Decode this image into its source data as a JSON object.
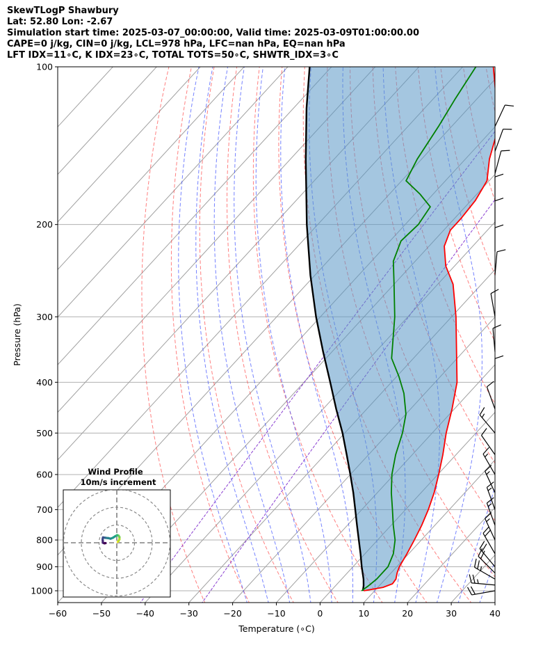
{
  "header": {
    "line1": "SkewTLogP Shawbury",
    "line2": "Lat: 52.80   Lon: -2.67",
    "line3": "Simulation start time: 2025-03-07_00:00:00, Valid time: 2025-03-09T01:00:00.00",
    "line4": "CAPE=0 j/kg, CIN=0 j/kg, LCL=978 hPa, LFC=nan hPa, EQ=nan hPa",
    "line5": "LFT IDX=11∘C, K IDX=23∘C, TOTAL TOTS=50∘C, SHWTR_IDX=3∘C"
  },
  "chart_data": {
    "type": "line",
    "chart_kind": "Skew-T log-P diagram",
    "xlabel": "Temperature (∘C)",
    "ylabel": "Pressure (hPa)",
    "xlim": [
      -60,
      40
    ],
    "ylim": [
      1050,
      100
    ],
    "y_scale": "log",
    "x_ticks": [
      "−60",
      "−50",
      "−40",
      "−30",
      "−20",
      "−10",
      "0",
      "10",
      "20",
      "30",
      "40"
    ],
    "x_tick_values": [
      -60,
      -50,
      -40,
      -30,
      -20,
      -10,
      0,
      10,
      20,
      30,
      40
    ],
    "y_ticks": [
      "100",
      "200",
      "300",
      "400",
      "500",
      "600",
      "700",
      "800",
      "900",
      "1000"
    ],
    "y_tick_values": [
      100,
      200,
      300,
      400,
      500,
      600,
      700,
      800,
      900,
      1000
    ],
    "grid": true,
    "colors": {
      "temperature": "#ff0000",
      "dewpoint": "#008000",
      "parcel": "#000000",
      "cin_cape_fill": "#5a98c6",
      "dry_adiabat": "#ff3b3b",
      "moist_adiabat": "#3a4dff",
      "mixing_ratio": "#8a3fd1",
      "isotherm": "#a0a0a0"
    },
    "series": [
      {
        "name": "",
        "role": "temperature",
        "points": [
          {
            "p": 1000,
            "t": 7.5
          },
          {
            "p": 985,
            "t": 11.2
          },
          {
            "p": 970,
            "t": 12.6
          },
          {
            "p": 950,
            "t": 12.4
          },
          {
            "p": 925,
            "t": 11.4
          },
          {
            "p": 900,
            "t": 10.6
          },
          {
            "p": 850,
            "t": 9.6
          },
          {
            "p": 800,
            "t": 8.4
          },
          {
            "p": 750,
            "t": 7.0
          },
          {
            "p": 700,
            "t": 5.2
          },
          {
            "p": 650,
            "t": 3.0
          },
          {
            "p": 600,
            "t": 0.2
          },
          {
            "p": 550,
            "t": -3.0
          },
          {
            "p": 500,
            "t": -6.8
          },
          {
            "p": 450,
            "t": -10.5
          },
          {
            "p": 400,
            "t": -15.0
          },
          {
            "p": 350,
            "t": -21.5
          },
          {
            "p": 300,
            "t": -29.0
          },
          {
            "p": 260,
            "t": -36.5
          },
          {
            "p": 240,
            "t": -42.0
          },
          {
            "p": 220,
            "t": -46.5
          },
          {
            "p": 205,
            "t": -48.5
          },
          {
            "p": 195,
            "t": -48.5
          },
          {
            "p": 180,
            "t": -49.0
          },
          {
            "p": 165,
            "t": -50.5
          },
          {
            "p": 150,
            "t": -54.5
          },
          {
            "p": 135,
            "t": -58.0
          },
          {
            "p": 120,
            "t": -63.0
          },
          {
            "p": 110,
            "t": -68.0
          },
          {
            "p": 100,
            "t": -73.0
          }
        ]
      },
      {
        "name": "",
        "role": "dewpoint",
        "points": [
          {
            "p": 1000,
            "t": 7.0
          },
          {
            "p": 980,
            "t": 7.5
          },
          {
            "p": 950,
            "t": 8.0
          },
          {
            "p": 900,
            "t": 8.0
          },
          {
            "p": 850,
            "t": 6.5
          },
          {
            "p": 800,
            "t": 4.0
          },
          {
            "p": 750,
            "t": 0.5
          },
          {
            "p": 700,
            "t": -3.0
          },
          {
            "p": 650,
            "t": -6.8
          },
          {
            "p": 600,
            "t": -10.5
          },
          {
            "p": 550,
            "t": -13.8
          },
          {
            "p": 500,
            "t": -16.8
          },
          {
            "p": 460,
            "t": -20.0
          },
          {
            "p": 420,
            "t": -24.8
          },
          {
            "p": 390,
            "t": -29.5
          },
          {
            "p": 360,
            "t": -35.0
          },
          {
            "p": 340,
            "t": -37.5
          },
          {
            "p": 300,
            "t": -43.0
          },
          {
            "p": 260,
            "t": -50.0
          },
          {
            "p": 235,
            "t": -55.0
          },
          {
            "p": 215,
            "t": -57.5
          },
          {
            "p": 200,
            "t": -57.0
          },
          {
            "p": 185,
            "t": -58.0
          },
          {
            "p": 175,
            "t": -63.0
          },
          {
            "p": 165,
            "t": -69.0
          },
          {
            "p": 150,
            "t": -71.0
          },
          {
            "p": 130,
            "t": -73.0
          },
          {
            "p": 115,
            "t": -75.0
          },
          {
            "p": 100,
            "t": -77.0
          }
        ]
      },
      {
        "name": "",
        "role": "parcel",
        "points": [
          {
            "p": 1000,
            "t": 7.3
          },
          {
            "p": 978,
            "t": 6.4
          },
          {
            "p": 950,
            "t": 5.0
          },
          {
            "p": 900,
            "t": 2.0
          },
          {
            "p": 850,
            "t": -1.0
          },
          {
            "p": 800,
            "t": -4.3
          },
          {
            "p": 750,
            "t": -7.8
          },
          {
            "p": 700,
            "t": -11.5
          },
          {
            "p": 650,
            "t": -15.5
          },
          {
            "p": 600,
            "t": -20.0
          },
          {
            "p": 550,
            "t": -25.0
          },
          {
            "p": 500,
            "t": -30.5
          },
          {
            "p": 450,
            "t": -37.0
          },
          {
            "p": 400,
            "t": -44.0
          },
          {
            "p": 350,
            "t": -52.0
          },
          {
            "p": 300,
            "t": -61.0
          },
          {
            "p": 250,
            "t": -71.0
          },
          {
            "p": 200,
            "t": -82.5
          },
          {
            "p": 150,
            "t": -96.5
          },
          {
            "p": 120,
            "t": -107.0
          },
          {
            "p": 100,
            "t": -115.0
          }
        ]
      }
    ],
    "wind_barbs": [
      {
        "p": 1000,
        "speed_kt": 20,
        "dir": 260
      },
      {
        "p": 975,
        "speed_kt": 25,
        "dir": 275
      },
      {
        "p": 950,
        "speed_kt": 25,
        "dir": 300
      },
      {
        "p": 925,
        "speed_kt": 20,
        "dir": 315
      },
      {
        "p": 900,
        "speed_kt": 20,
        "dir": 320
      },
      {
        "p": 850,
        "speed_kt": 20,
        "dir": 330
      },
      {
        "p": 800,
        "speed_kt": 15,
        "dir": 335
      },
      {
        "p": 750,
        "speed_kt": 15,
        "dir": 340
      },
      {
        "p": 700,
        "speed_kt": 15,
        "dir": 340
      },
      {
        "p": 650,
        "speed_kt": 15,
        "dir": 335
      },
      {
        "p": 600,
        "speed_kt": 15,
        "dir": 330
      },
      {
        "p": 550,
        "speed_kt": 10,
        "dir": 325
      },
      {
        "p": 500,
        "speed_kt": 15,
        "dir": 320
      },
      {
        "p": 450,
        "speed_kt": 10,
        "dir": 340
      },
      {
        "p": 400,
        "speed_kt": 10,
        "dir": 0
      },
      {
        "p": 350,
        "speed_kt": 10,
        "dir": 355
      },
      {
        "p": 300,
        "speed_kt": 10,
        "dir": 350
      },
      {
        "p": 250,
        "speed_kt": 10,
        "dir": 5
      },
      {
        "p": 225,
        "speed_kt": 10,
        "dir": 0
      },
      {
        "p": 200,
        "speed_kt": 10,
        "dir": 0
      },
      {
        "p": 180,
        "speed_kt": 10,
        "dir": 0
      },
      {
        "p": 160,
        "speed_kt": 10,
        "dir": 15
      },
      {
        "p": 145,
        "speed_kt": 10,
        "dir": 20
      },
      {
        "p": 130,
        "speed_kt": 10,
        "dir": 25
      }
    ],
    "hodograph": {
      "title": "Wind Profile",
      "subtitle": "10m/s increment",
      "ring_speeds_ms": [
        10,
        20,
        30
      ],
      "points": [
        {
          "u": 0.5,
          "v": 0.5
        },
        {
          "u": 1.0,
          "v": 1.0
        },
        {
          "u": 1.5,
          "v": 2.0
        },
        {
          "u": 1.5,
          "v": 3.2
        },
        {
          "u": 1.0,
          "v": 4.0
        },
        {
          "u": 0.2,
          "v": 4.3
        },
        {
          "u": -1.0,
          "v": 3.6
        },
        {
          "u": -2.2,
          "v": 2.8
        },
        {
          "u": -3.5,
          "v": 2.3
        },
        {
          "u": -4.8,
          "v": 2.6
        },
        {
          "u": -6.5,
          "v": 2.8
        },
        {
          "u": -7.8,
          "v": 3.0
        },
        {
          "u": -8.0,
          "v": 2.0
        },
        {
          "u": -7.9,
          "v": 1.0
        },
        {
          "u": -7.8,
          "v": 0.0
        },
        {
          "u": -7.0,
          "v": -0.3
        },
        {
          "u": -6.3,
          "v": -0.2
        }
      ]
    }
  }
}
